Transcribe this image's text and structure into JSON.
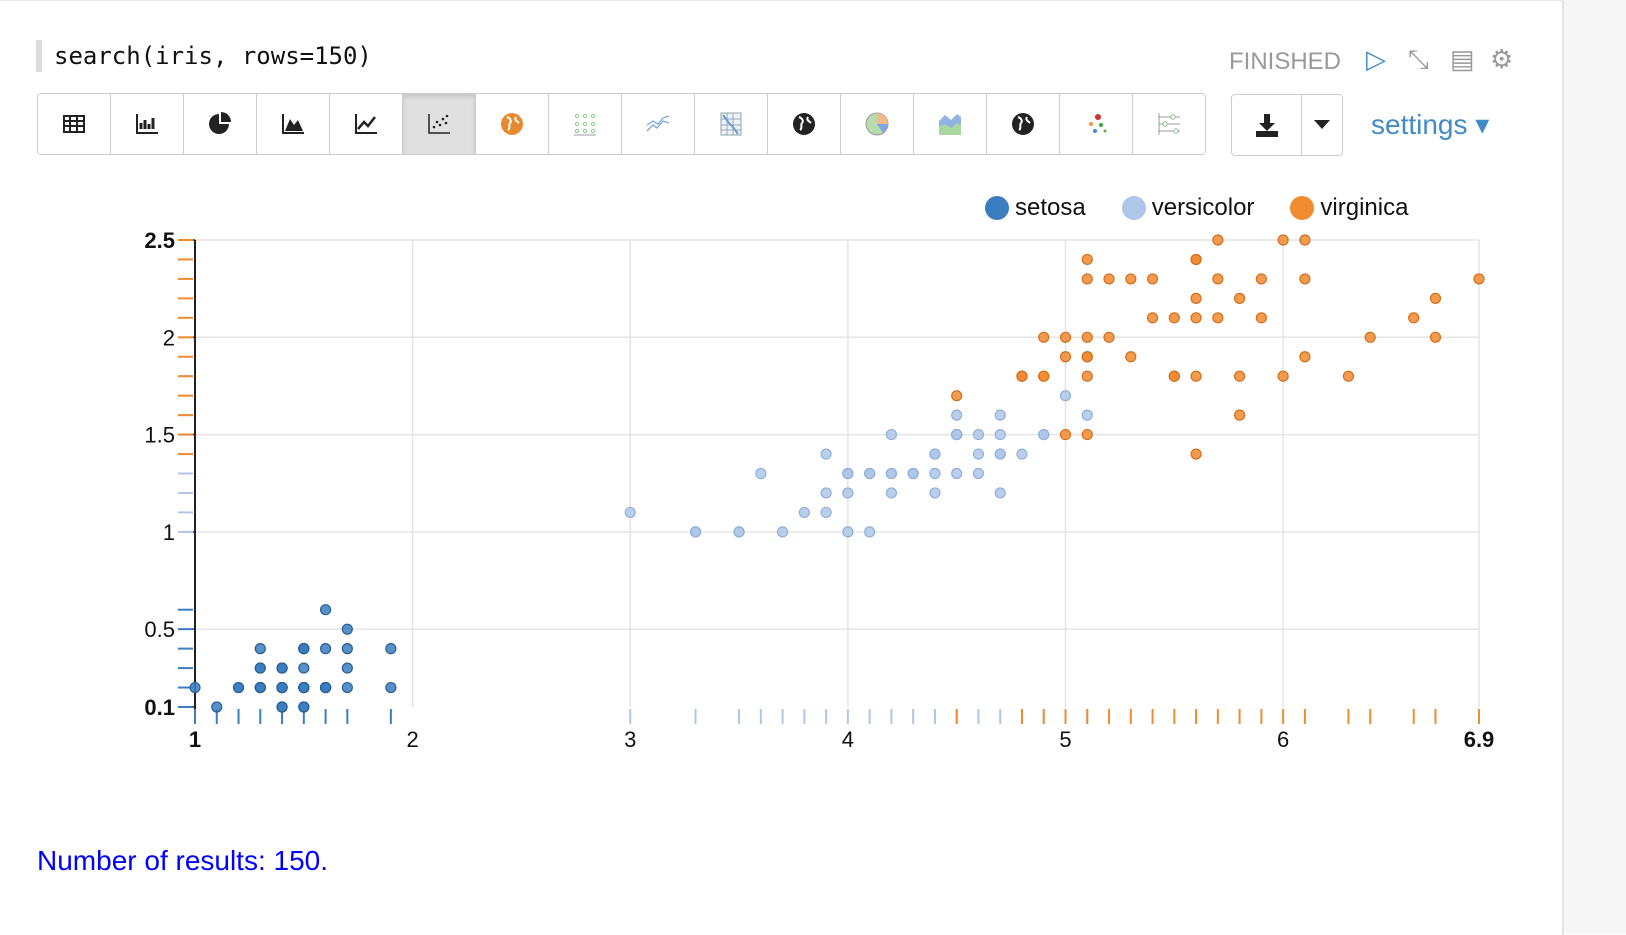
{
  "paragraph": {
    "title": "search(iris, rows=150)",
    "status": "FINISHED"
  },
  "controls": [
    {
      "name": "run-icon",
      "glyph": "▷"
    },
    {
      "name": "collapse-icon",
      "glyph": "⤡"
    },
    {
      "name": "book-icon",
      "glyph": "▤"
    },
    {
      "name": "gear-icon",
      "glyph": "⚙"
    }
  ],
  "toolbar": {
    "buttons": [
      {
        "name": "table-icon"
      },
      {
        "name": "bar-chart-icon"
      },
      {
        "name": "pie-chart-icon"
      },
      {
        "name": "area-chart-icon"
      },
      {
        "name": "line-chart-icon"
      },
      {
        "name": "scatter-chart-icon",
        "active": true
      },
      {
        "name": "globe-orange-icon"
      },
      {
        "name": "dot-grid-icon"
      },
      {
        "name": "sparkline-icon"
      },
      {
        "name": "heatmap-icon"
      },
      {
        "name": "globe-icon"
      },
      {
        "name": "pie-color-icon"
      },
      {
        "name": "stacked-area-icon"
      },
      {
        "name": "globe-dark-icon"
      },
      {
        "name": "bubble-icon"
      },
      {
        "name": "slider-icon"
      }
    ],
    "download_icon": "download-icon",
    "dropdown_icon": "caret-down-icon",
    "settings_label": "settings ▾"
  },
  "chart_data": {
    "type": "scatter",
    "xlim": [
      1,
      6.9
    ],
    "ylim": [
      0.1,
      2.5
    ],
    "x_ticks": [
      "1",
      "2",
      "3",
      "4",
      "5",
      "6",
      "6.9"
    ],
    "y_ticks": [
      "0.1",
      "0.5",
      "1",
      "1.5",
      "2",
      "2.5"
    ],
    "grid": true,
    "legend": "top-right",
    "series": [
      {
        "name": "setosa",
        "color": "#3b7dbf",
        "x": [
          1.4,
          1.4,
          1.3,
          1.5,
          1.4,
          1.7,
          1.4,
          1.5,
          1.4,
          1.5,
          1.5,
          1.6,
          1.4,
          1.1,
          1.2,
          1.5,
          1.3,
          1.4,
          1.7,
          1.5,
          1.7,
          1.5,
          1.0,
          1.7,
          1.9,
          1.6,
          1.6,
          1.5,
          1.4,
          1.6,
          1.6,
          1.5,
          1.5,
          1.4,
          1.5,
          1.2,
          1.3,
          1.4,
          1.3,
          1.5,
          1.3,
          1.3,
          1.3,
          1.6,
          1.9,
          1.4,
          1.6,
          1.4,
          1.5,
          1.4
        ],
        "y": [
          0.2,
          0.2,
          0.2,
          0.2,
          0.2,
          0.4,
          0.3,
          0.2,
          0.2,
          0.1,
          0.2,
          0.2,
          0.1,
          0.1,
          0.2,
          0.4,
          0.4,
          0.3,
          0.3,
          0.3,
          0.2,
          0.4,
          0.2,
          0.5,
          0.2,
          0.2,
          0.4,
          0.2,
          0.2,
          0.2,
          0.2,
          0.4,
          0.1,
          0.2,
          0.2,
          0.2,
          0.2,
          0.1,
          0.2,
          0.2,
          0.3,
          0.3,
          0.2,
          0.6,
          0.4,
          0.3,
          0.2,
          0.2,
          0.2,
          0.2
        ]
      },
      {
        "name": "versicolor",
        "color": "#aec7e8",
        "x": [
          4.7,
          4.5,
          4.9,
          4.0,
          4.6,
          4.5,
          4.7,
          3.3,
          4.6,
          3.9,
          3.5,
          4.2,
          4.0,
          4.7,
          3.6,
          4.4,
          4.5,
          4.1,
          4.5,
          3.9,
          4.8,
          4.0,
          4.9,
          4.7,
          4.3,
          4.4,
          4.8,
          5.0,
          4.5,
          3.5,
          3.8,
          3.7,
          3.9,
          5.1,
          4.5,
          4.5,
          4.7,
          4.4,
          4.1,
          4.0,
          4.4,
          4.6,
          4.0,
          3.3,
          4.2,
          4.2,
          4.2,
          4.3,
          3.0,
          4.1
        ],
        "y": [
          1.4,
          1.5,
          1.5,
          1.3,
          1.5,
          1.3,
          1.6,
          1.0,
          1.3,
          1.4,
          1.0,
          1.5,
          1.0,
          1.4,
          1.3,
          1.4,
          1.5,
          1.0,
          1.5,
          1.1,
          1.8,
          1.3,
          1.5,
          1.2,
          1.3,
          1.4,
          1.4,
          1.7,
          1.5,
          1.0,
          1.1,
          1.0,
          1.2,
          1.6,
          1.5,
          1.6,
          1.5,
          1.3,
          1.3,
          1.3,
          1.2,
          1.4,
          1.2,
          1.0,
          1.3,
          1.2,
          1.3,
          1.3,
          1.1,
          1.3
        ]
      },
      {
        "name": "virginica",
        "color": "#f28a30",
        "x": [
          6.0,
          5.1,
          5.9,
          5.6,
          5.8,
          6.6,
          4.5,
          6.3,
          5.8,
          6.1,
          5.1,
          5.3,
          5.5,
          5.0,
          5.1,
          5.3,
          5.5,
          6.7,
          6.9,
          5.0,
          5.7,
          4.9,
          6.7,
          4.9,
          5.7,
          6.0,
          4.8,
          4.9,
          5.6,
          5.8,
          6.1,
          6.4,
          5.6,
          5.1,
          5.6,
          6.1,
          5.6,
          5.5,
          4.8,
          5.4,
          5.6,
          5.1,
          5.1,
          5.9,
          5.7,
          5.2,
          5.0,
          5.2,
          5.4,
          5.1
        ],
        "y": [
          2.5,
          1.9,
          2.1,
          1.8,
          2.2,
          2.1,
          1.7,
          1.8,
          1.8,
          2.5,
          2.0,
          1.9,
          2.1,
          2.0,
          2.4,
          2.3,
          1.8,
          2.2,
          2.3,
          1.5,
          2.3,
          2.0,
          2.0,
          1.8,
          2.1,
          1.8,
          1.8,
          1.8,
          2.1,
          1.6,
          1.9,
          2.0,
          2.2,
          1.5,
          1.4,
          2.3,
          2.4,
          1.8,
          1.8,
          2.1,
          2.4,
          2.3,
          1.9,
          2.3,
          2.5,
          2.3,
          1.9,
          2.0,
          2.3,
          1.8
        ]
      }
    ]
  },
  "footer": {
    "results": "Number of results: 150."
  }
}
